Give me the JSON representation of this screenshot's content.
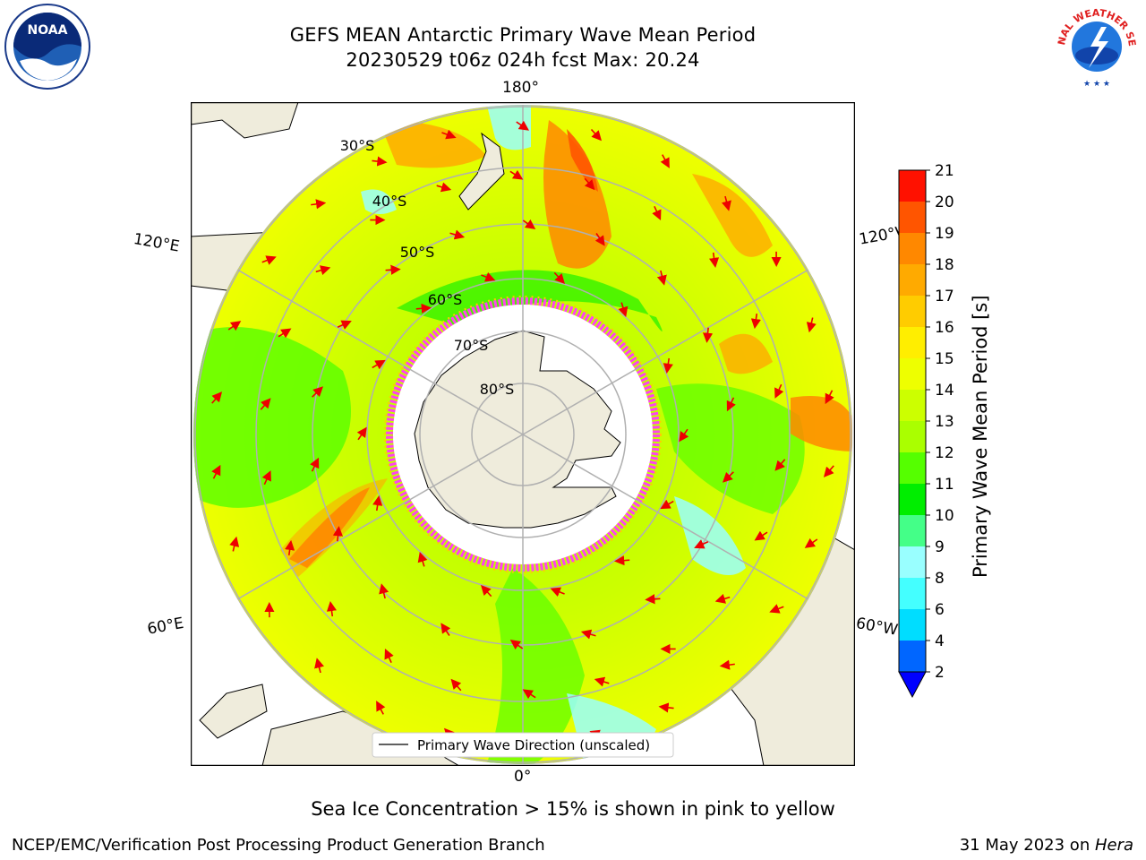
{
  "title": {
    "line1": "GEFS MEAN Antarctic Primary Wave Mean Period",
    "line2": "20230529 t06z 024h fcst   Max: 20.24"
  },
  "logos": {
    "left": {
      "icon": "noaa-logo-icon",
      "text": "NOAA"
    },
    "right": {
      "icon": "nws-logo-icon",
      "text": "NATIONAL WEATHER SERVICE"
    }
  },
  "map": {
    "projection": "south-polar-stereographic",
    "longitude_labels": {
      "top": "180°",
      "bottom": "0°",
      "upper_left": "120°E",
      "upper_right": "120°W",
      "lower_left": "60°E",
      "lower_right": "60°W"
    },
    "latitude_labels": [
      "30°S",
      "40°S",
      "50°S",
      "60°S",
      "70°S",
      "80°S"
    ],
    "legend_label": "Primary Wave Direction (unscaled)",
    "colors": {
      "land": "#efecdc",
      "ice": "#ffffff",
      "ice_edge": "#ff44ee",
      "arrow": "#ee0000",
      "gridline": "#b0b0b0"
    }
  },
  "colorbar": {
    "title": "Primary Wave Mean Period [s]",
    "ticks": [
      "2",
      "4",
      "6",
      "8",
      "9",
      "10",
      "11",
      "12",
      "13",
      "14",
      "15",
      "16",
      "17",
      "18",
      "19",
      "20",
      "21"
    ],
    "colors": [
      "#0066ff",
      "#00ddff",
      "#44ffff",
      "#99ffff",
      "#44ff88",
      "#00ee00",
      "#55ff00",
      "#aaff00",
      "#ccff00",
      "#eeff00",
      "#ffee00",
      "#ffcc00",
      "#ffaa00",
      "#ff8800",
      "#ff5500",
      "#ff1100"
    ],
    "under_color": "#0000ff"
  },
  "footer": {
    "note": "Sea Ice Concentration > 15% is shown in pink to yellow",
    "credit": "NCEP/EMC/Verification Post Processing Product Generation Branch",
    "date": "31 May 2023 on ",
    "host": "Hera"
  }
}
